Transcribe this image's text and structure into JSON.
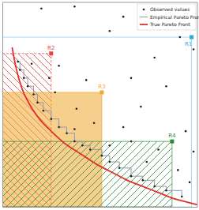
{
  "chart_data": {
    "type": "scatter",
    "xlim": [
      0,
      100
    ],
    "ylim": [
      0,
      100
    ],
    "tick_labels": false,
    "legend": "top-right",
    "series": [
      {
        "name": "Observed values",
        "type": "scatter",
        "color": "#222222",
        "marker": "circle",
        "x": [
          20,
          37,
          62,
          55,
          91,
          98,
          78,
          15,
          29,
          43,
          66,
          84,
          71,
          38,
          47,
          62,
          94,
          27,
          37,
          66,
          80,
          98,
          90,
          74,
          55,
          96,
          24
        ],
        "values": [
          97,
          98,
          93,
          86,
          83,
          77,
          73,
          70,
          69,
          62,
          63,
          59,
          49,
          48,
          41,
          39,
          37,
          56,
          38,
          32,
          28,
          27,
          18,
          22,
          30,
          12,
          63
        ]
      },
      {
        "name": "Empirical Pareto Front",
        "type": "line",
        "line_style": "step",
        "color": "#8a9bb0",
        "marker": "circle",
        "x": [
          8,
          9,
          11,
          13,
          16,
          18,
          21,
          25,
          29,
          33,
          37,
          41,
          45,
          51,
          55,
          60,
          66,
          72,
          78,
          84,
          92
        ],
        "values": [
          71,
          67,
          63,
          59,
          55,
          51,
          47,
          43,
          39,
          36,
          32,
          30,
          28,
          25,
          22,
          19,
          15,
          13,
          10,
          8,
          5
        ]
      },
      {
        "name": "True Pareto Front",
        "type": "line",
        "line_style": "solid",
        "color": "#e0302a",
        "x": [
          5,
          7,
          10,
          14,
          19,
          25,
          32,
          40,
          48,
          56,
          64,
          72,
          80,
          88,
          96,
          100
        ],
        "values": [
          78,
          68,
          58,
          50,
          43,
          37,
          31,
          26,
          21,
          17,
          13,
          10,
          7,
          4,
          2,
          1
        ]
      }
    ],
    "reference_points": [
      {
        "name": "R1",
        "x": 97,
        "y": 83,
        "color": "#29abe2"
      },
      {
        "name": "R2",
        "x": 25,
        "y": 75,
        "color": "#e8423f"
      },
      {
        "name": "R3",
        "x": 51,
        "y": 56,
        "color": "#f0a830"
      },
      {
        "name": "R4",
        "x": 87,
        "y": 32,
        "color": "#2e8b3a"
      }
    ]
  }
}
